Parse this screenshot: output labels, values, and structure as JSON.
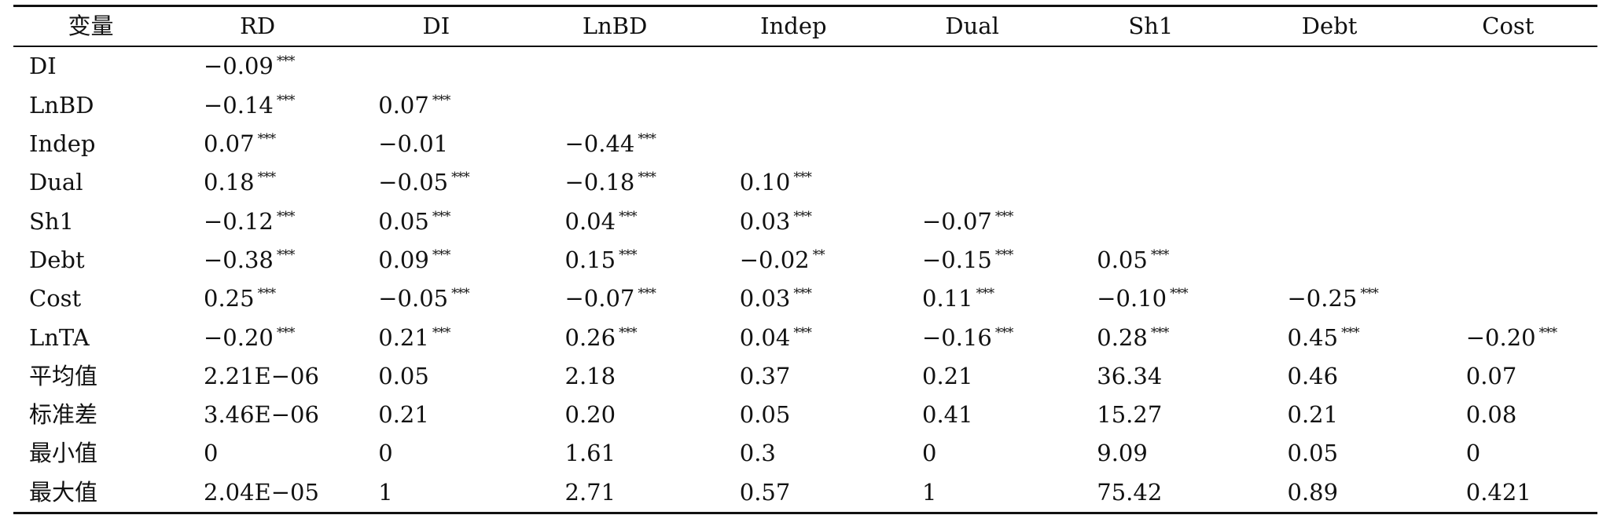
{
  "table": {
    "columns": [
      "变量",
      "RD",
      "DI",
      "LnBD",
      "Indep",
      "Dual",
      "Sh1",
      "Debt",
      "Cost"
    ],
    "rows": [
      {
        "label": "DI",
        "cells": [
          {
            "v": "−0.09",
            "s": "***"
          },
          null,
          null,
          null,
          null,
          null,
          null,
          null
        ]
      },
      {
        "label": "LnBD",
        "cells": [
          {
            "v": "−0.14",
            "s": "***"
          },
          {
            "v": "0.07",
            "s": "***"
          },
          null,
          null,
          null,
          null,
          null,
          null
        ]
      },
      {
        "label": "Indep",
        "cells": [
          {
            "v": "0.07",
            "s": "***"
          },
          {
            "v": "−0.01",
            "s": ""
          },
          {
            "v": "−0.44",
            "s": "***"
          },
          null,
          null,
          null,
          null,
          null
        ]
      },
      {
        "label": "Dual",
        "cells": [
          {
            "v": "0.18",
            "s": "***"
          },
          {
            "v": "−0.05",
            "s": "***"
          },
          {
            "v": "−0.18",
            "s": "***"
          },
          {
            "v": "0.10",
            "s": "***"
          },
          null,
          null,
          null,
          null
        ]
      },
      {
        "label": "Sh1",
        "cells": [
          {
            "v": "−0.12",
            "s": "***"
          },
          {
            "v": "0.05",
            "s": "***"
          },
          {
            "v": "0.04",
            "s": "***"
          },
          {
            "v": "0.03",
            "s": "***"
          },
          {
            "v": "−0.07",
            "s": "***"
          },
          null,
          null,
          null
        ]
      },
      {
        "label": "Debt",
        "cells": [
          {
            "v": "−0.38",
            "s": "***"
          },
          {
            "v": "0.09",
            "s": "***"
          },
          {
            "v": "0.15",
            "s": "***"
          },
          {
            "v": "−0.02",
            "s": "**"
          },
          {
            "v": "−0.15",
            "s": "***"
          },
          {
            "v": "0.05",
            "s": "***"
          },
          null,
          null
        ]
      },
      {
        "label": "Cost",
        "cells": [
          {
            "v": "0.25",
            "s": "***"
          },
          {
            "v": "−0.05",
            "s": "***"
          },
          {
            "v": "−0.07",
            "s": "***"
          },
          {
            "v": "0.03",
            "s": "***"
          },
          {
            "v": "0.11",
            "s": "***"
          },
          {
            "v": "−0.10",
            "s": "***"
          },
          {
            "v": "−0.25",
            "s": "***"
          },
          null
        ]
      },
      {
        "label": "LnTA",
        "cells": [
          {
            "v": "−0.20",
            "s": "***"
          },
          {
            "v": "0.21",
            "s": "***"
          },
          {
            "v": "0.26",
            "s": "***"
          },
          {
            "v": "0.04",
            "s": "***"
          },
          {
            "v": "−0.16",
            "s": "***"
          },
          {
            "v": "0.28",
            "s": "***"
          },
          {
            "v": "0.45",
            "s": "***"
          },
          {
            "v": "−0.20",
            "s": "***"
          }
        ]
      },
      {
        "label": "平均值",
        "cells": [
          {
            "v": "2.21E−06",
            "s": ""
          },
          {
            "v": "0.05",
            "s": ""
          },
          {
            "v": "2.18",
            "s": ""
          },
          {
            "v": "0.37",
            "s": ""
          },
          {
            "v": "0.21",
            "s": ""
          },
          {
            "v": "36.34",
            "s": ""
          },
          {
            "v": "0.46",
            "s": ""
          },
          {
            "v": "0.07",
            "s": ""
          }
        ]
      },
      {
        "label": "标准差",
        "cells": [
          {
            "v": "3.46E−06",
            "s": ""
          },
          {
            "v": "0.21",
            "s": ""
          },
          {
            "v": "0.20",
            "s": ""
          },
          {
            "v": "0.05",
            "s": ""
          },
          {
            "v": "0.41",
            "s": ""
          },
          {
            "v": "15.27",
            "s": ""
          },
          {
            "v": "0.21",
            "s": ""
          },
          {
            "v": "0.08",
            "s": ""
          }
        ]
      },
      {
        "label": "最小值",
        "cells": [
          {
            "v": "0",
            "s": ""
          },
          {
            "v": "0",
            "s": ""
          },
          {
            "v": "1.61",
            "s": ""
          },
          {
            "v": "0.3",
            "s": ""
          },
          {
            "v": "0",
            "s": ""
          },
          {
            "v": "9.09",
            "s": ""
          },
          {
            "v": "0.05",
            "s": ""
          },
          {
            "v": "0",
            "s": ""
          }
        ]
      },
      {
        "label": "最大值",
        "cells": [
          {
            "v": "2.04E−05",
            "s": ""
          },
          {
            "v": "1",
            "s": ""
          },
          {
            "v": "2.71",
            "s": ""
          },
          {
            "v": "0.57",
            "s": ""
          },
          {
            "v": "1",
            "s": ""
          },
          {
            "v": "75.42",
            "s": ""
          },
          {
            "v": "0.89",
            "s": ""
          },
          {
            "v": "0.421",
            "s": ""
          }
        ]
      }
    ]
  }
}
